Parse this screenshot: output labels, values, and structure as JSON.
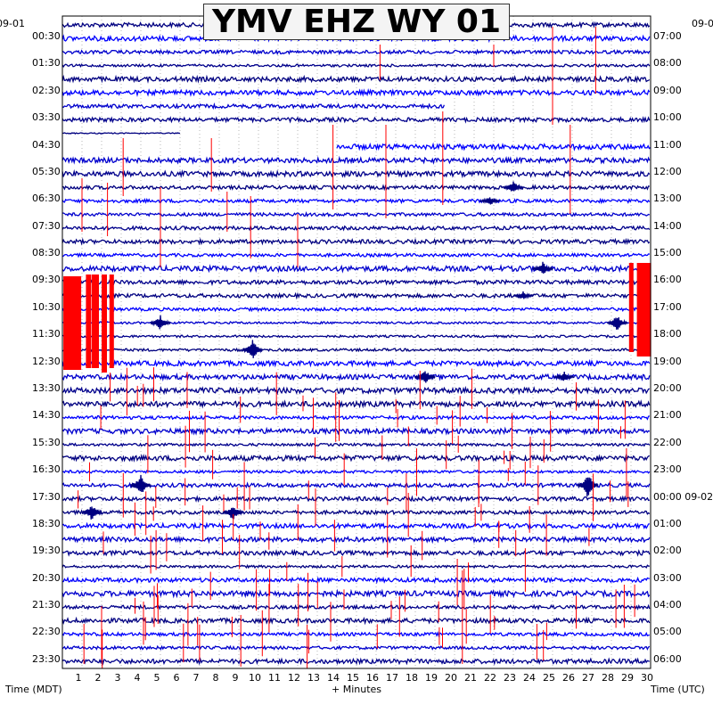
{
  "chart_data": {
    "type": "line",
    "title": "YMV EHZ WY 01",
    "xlabel": "+ Minutes",
    "left_axis_label": "Time (MDT)",
    "right_axis_label": "Time (UTC)",
    "left_date": "09-01",
    "right_date_top": "09-0",
    "right_date_change": "09-02",
    "xlim": [
      0,
      30
    ],
    "x_ticks": [
      "1",
      "2",
      "3",
      "4",
      "5",
      "6",
      "7",
      "8",
      "9",
      "10",
      "11",
      "12",
      "13",
      "14",
      "15",
      "16",
      "17",
      "18",
      "19",
      "20",
      "21",
      "22",
      "23",
      "24",
      "25",
      "26",
      "27",
      "28",
      "29",
      "30"
    ],
    "left_time_ticks": [
      "00:30",
      "01:30",
      "02:30",
      "03:30",
      "04:30",
      "05:30",
      "06:30",
      "07:30",
      "08:30",
      "09:30",
      "10:30",
      "11:30",
      "12:30",
      "13:30",
      "14:30",
      "15:30",
      "16:30",
      "17:30",
      "18:30",
      "19:30",
      "20:30",
      "21:30",
      "22:30",
      "23:30"
    ],
    "right_time_ticks": [
      "07:00",
      "08:00",
      "09:00",
      "10:00",
      "11:00",
      "12:00",
      "13:00",
      "14:00",
      "15:00",
      "16:00",
      "17:00",
      "18:00",
      "19:00",
      "20:00",
      "21:00",
      "22:00",
      "23:00",
      "00:00",
      "01:00",
      "02:00",
      "03:00",
      "04:00",
      "05:00",
      "06:00"
    ],
    "trace_rows": 48,
    "trace_colors": [
      "#000080",
      "#0000ff",
      "#0000cd",
      "#00008b"
    ],
    "event_color": "#ff0000",
    "grid": true
  }
}
